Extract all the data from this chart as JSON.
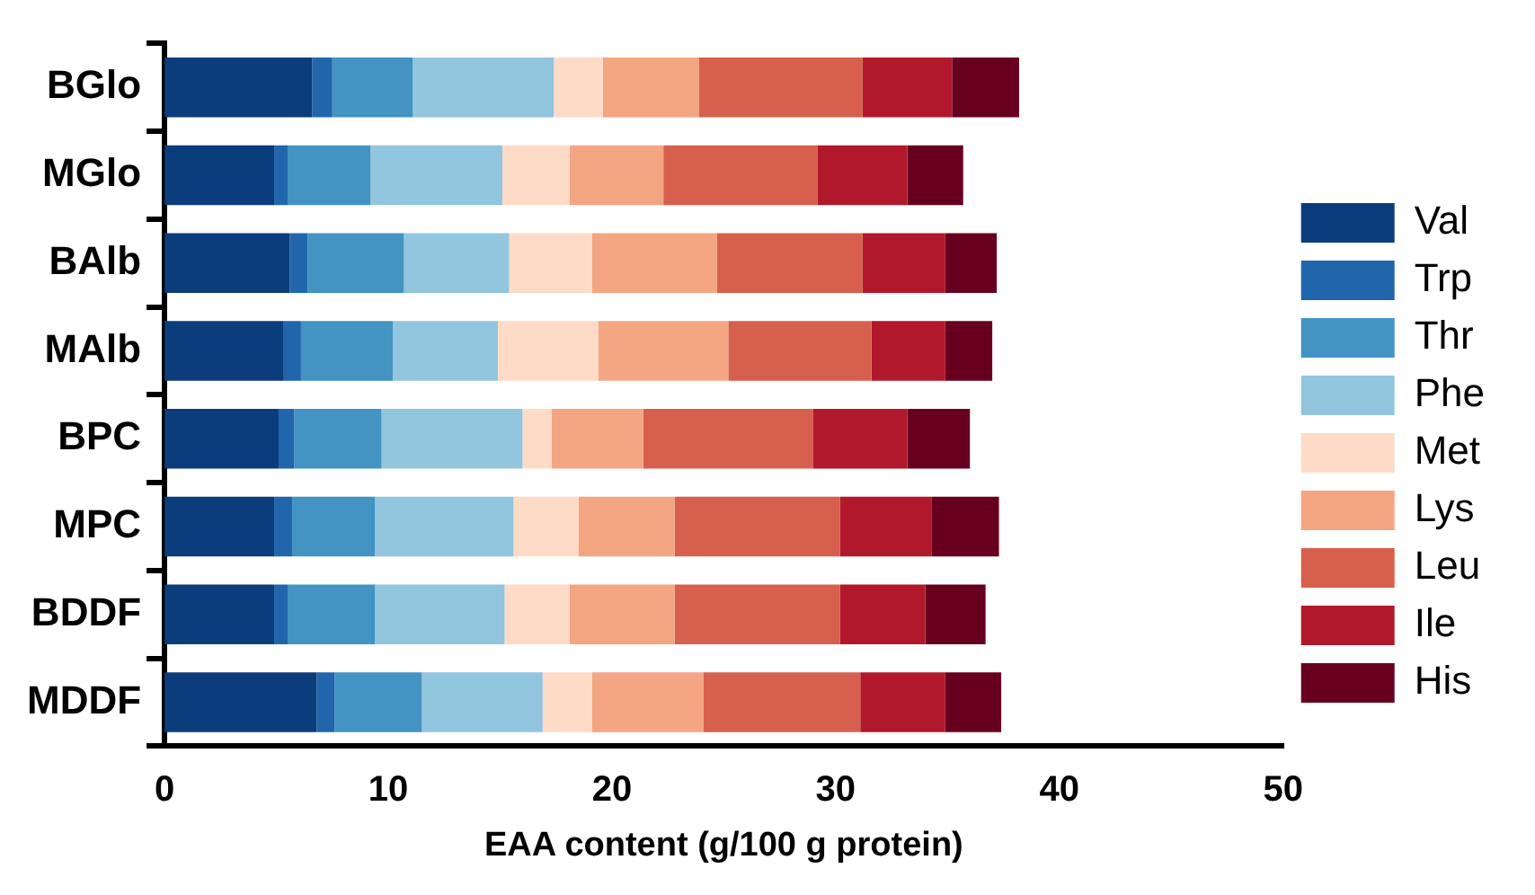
{
  "chart_data": {
    "type": "bar",
    "orientation": "horizontal",
    "stacked": true,
    "xlabel": "EAA content (g/100 g protein)",
    "categories": [
      "BGlo",
      "MGlo",
      "BAlb",
      "MAlb",
      "BPC",
      "MPC",
      "BDDF",
      "MDDF"
    ],
    "xlim": [
      0,
      50
    ],
    "xticks": [
      0,
      10,
      20,
      30,
      40,
      50
    ],
    "grid": false,
    "legend": "right",
    "series": [
      {
        "name": "Val",
        "color": "#0b3d7c",
        "values": [
          6.6,
          4.9,
          5.6,
          5.3,
          5.1,
          4.9,
          4.9,
          6.8
        ]
      },
      {
        "name": "Trp",
        "color": "#2166ac",
        "values": [
          0.9,
          0.6,
          0.8,
          0.8,
          0.7,
          0.8,
          0.6,
          0.8
        ]
      },
      {
        "name": "Thr",
        "color": "#4393c3",
        "values": [
          3.6,
          3.7,
          4.3,
          4.1,
          3.9,
          3.7,
          3.9,
          3.9
        ]
      },
      {
        "name": "Phe",
        "color": "#92c5de",
        "values": [
          6.3,
          5.9,
          4.7,
          4.7,
          6.3,
          6.2,
          5.8,
          5.4
        ]
      },
      {
        "name": "Met",
        "color": "#fddbc7",
        "values": [
          2.2,
          3.0,
          3.7,
          4.5,
          1.3,
          2.9,
          2.9,
          2.2
        ]
      },
      {
        "name": "Lys",
        "color": "#f4a582",
        "values": [
          4.3,
          4.2,
          5.6,
          5.8,
          4.1,
          4.3,
          4.7,
          5.0
        ]
      },
      {
        "name": "Leu",
        "color": "#d6604d",
        "values": [
          7.3,
          6.9,
          6.5,
          6.4,
          7.6,
          7.4,
          7.4,
          7.0
        ]
      },
      {
        "name": "Ile",
        "color": "#b2182b",
        "values": [
          4.0,
          4.0,
          3.7,
          3.3,
          4.2,
          4.1,
          3.8,
          3.8
        ]
      },
      {
        "name": "His",
        "color": "#67001f",
        "values": [
          3.0,
          2.5,
          2.3,
          2.1,
          2.8,
          3.0,
          2.7,
          2.5
        ]
      }
    ]
  }
}
